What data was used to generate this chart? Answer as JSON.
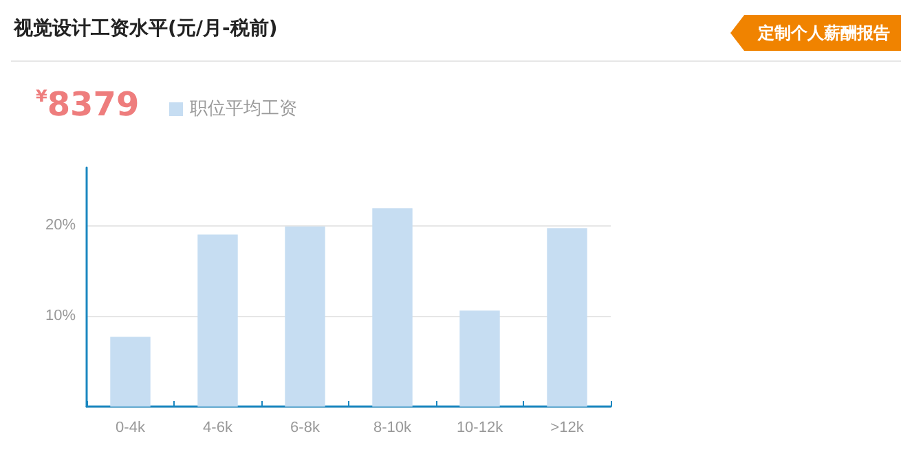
{
  "chart_data": {
    "type": "bar",
    "title": "视觉设计工资水平(元/月-税前)",
    "annotations": [
      "定制个人薪酬报告",
      "$^{¥}$8379"
    ],
    "categories": [
      "0-4k",
      "4-6k",
      "6-8k",
      "8-10k",
      "10-12k",
      ">12k"
    ],
    "series": [
      {
        "name": "职位平均工资",
        "color": "#c6ddf2",
        "values": [
          7.7,
          19.0,
          19.9,
          21.9,
          10.6,
          19.7
        ]
      }
    ],
    "ylim": [
      0,
      26.4
    ],
    "yticks": [
      {
        "value": 0,
        "label": null
      },
      {
        "value": 10,
        "label": "10%"
      },
      {
        "value": 20,
        "label": "20%"
      }
    ],
    "grid": "y",
    "legend": "top left"
  }
}
